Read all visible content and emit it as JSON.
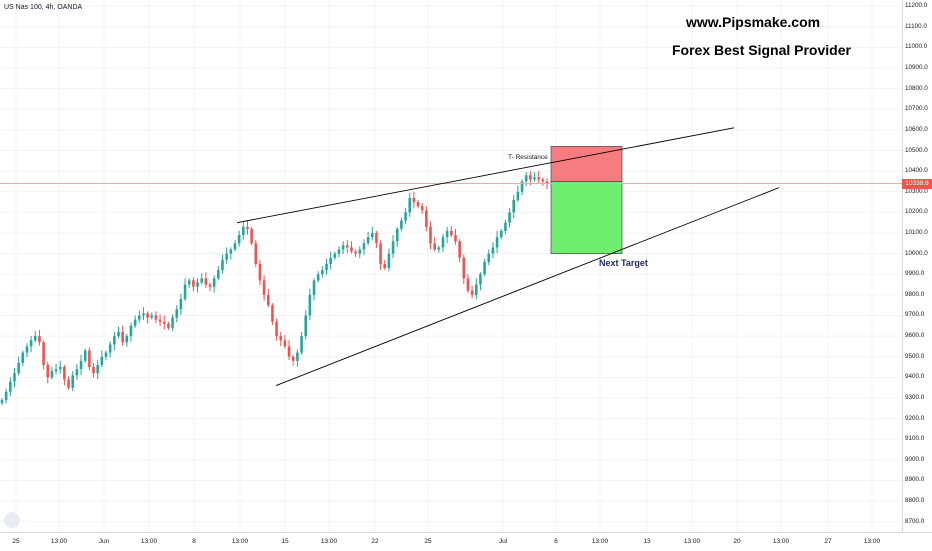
{
  "symbol": "US Nas 100, 4h, OANDA",
  "watermark": {
    "line1": "www.Pipsmake.com",
    "line2": "Forex Best Signal Provider"
  },
  "colors": {
    "up": "#26a69a",
    "down": "#ef5350",
    "grid": "#f0f3fa",
    "stop_zone": "#f77c80",
    "target_zone": "#6fee6f",
    "current_price_line": "#f4a8a6",
    "trendline": "#000000"
  },
  "current_price": "10339.8",
  "annotations": {
    "resistance": "T- Resistance",
    "target": "Next Target"
  },
  "chart_data": {
    "type": "candlestick",
    "title": "US Nas 100, 4h, OANDA",
    "ylim": [
      8650,
      11230
    ],
    "y_ticks": [
      "11200.0",
      "11100.0",
      "11000.0",
      "10900.0",
      "10800.0",
      "10700.0",
      "10600.0",
      "10500.0",
      "10400.0",
      "10300.0",
      "10200.0",
      "10100.0",
      "10000.0",
      "9900.0",
      "9800.0",
      "9700.0",
      "9600.0",
      "9500.0",
      "9400.0",
      "9300.0",
      "9200.0",
      "9100.0",
      "9000.0",
      "8900.0",
      "8800.0",
      "8700.0"
    ],
    "x_tick_labels": [
      "25",
      "13:00",
      "Jun",
      "13:00",
      "8",
      "13:00",
      "15",
      "13:00",
      "22",
      "25",
      "Jul",
      "6",
      "13:00",
      "13",
      "13:00",
      "20",
      "13:00",
      "27",
      "13:00"
    ],
    "grid": true,
    "candles_close": [
      9290,
      9330,
      9380,
      9420,
      9470,
      9520,
      9550,
      9580,
      9600,
      9570,
      9460,
      9400,
      9430,
      9440,
      9450,
      9390,
      9350,
      9410,
      9440,
      9480,
      9530,
      9450,
      9420,
      9460,
      9500,
      9520,
      9560,
      9600,
      9620,
      9570,
      9600,
      9650,
      9680,
      9700,
      9710,
      9690,
      9700,
      9680,
      9670,
      9660,
      9640,
      9690,
      9730,
      9780,
      9850,
      9870,
      9840,
      9860,
      9880,
      9850,
      9840,
      9880,
      9920,
      9970,
      10000,
      10020,
      10050,
      10090,
      10130,
      10120,
      10050,
      9950,
      9870,
      9800,
      9750,
      9670,
      9600,
      9580,
      9550,
      9500,
      9480,
      9520,
      9600,
      9700,
      9800,
      9870,
      9900,
      9920,
      9950,
      9980,
      10000,
      10020,
      10040,
      10030,
      10010,
      10000,
      10020,
      10050,
      10080,
      10100,
      10050,
      9950,
      9930,
      10000,
      10060,
      10120,
      10160,
      10200,
      10270,
      10250,
      10230,
      10210,
      10130,
      10050,
      10020,
      10030,
      10080,
      10110,
      10090,
      10060,
      9980,
      9880,
      9820,
      9800,
      9850,
      9900,
      9960,
      10000,
      10030,
      10080,
      10110,
      10150,
      10200,
      10260,
      10300,
      10350,
      10380,
      10360,
      10370,
      10360,
      10350,
      10339.8
    ],
    "drawings": {
      "upper_trendline": {
        "from": [
          "Jun 10 13:00",
          10150
        ],
        "to": [
          "Jul 20",
          10610
        ]
      },
      "lower_trendline": {
        "from": [
          "Jun 12",
          9360
        ],
        "to": [
          "Jul 21",
          10320
        ]
      },
      "stop_zone": [
        10350,
        10520
      ],
      "target_zone": [
        10000,
        10350
      ],
      "entry": 10350,
      "target": 10000
    }
  }
}
